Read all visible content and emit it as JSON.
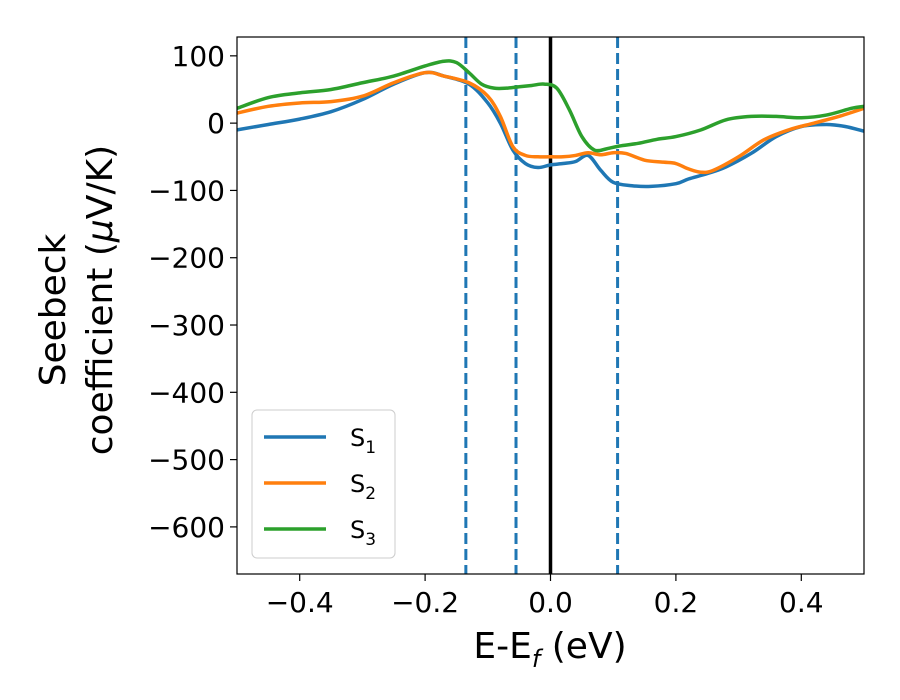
{
  "chart_data": {
    "type": "line",
    "xlabel": {
      "main": "E-E",
      "sub": "f",
      "tail": " (eV)"
    },
    "ylabel": {
      "line1": "Seebeck",
      "line2_pre": "coefficient  (",
      "line2_mu": "μ",
      "line2_post": "V/K)"
    },
    "xlim": [
      -0.5,
      0.5
    ],
    "ylim": [
      -670,
      128
    ],
    "xticks": [
      -0.4,
      -0.2,
      0.0,
      0.2,
      0.4
    ],
    "xtick_labels": [
      "−0.4",
      "−0.2",
      "0.0",
      "0.2",
      "0.4"
    ],
    "yticks": [
      100,
      0,
      -100,
      -200,
      -300,
      -400,
      -500,
      -600
    ],
    "ytick_labels": [
      "100",
      "0",
      "−100",
      "−200",
      "−300",
      "−400",
      "−500",
      "−600"
    ],
    "grid": false,
    "legend_position": "lower-left",
    "vlines": [
      {
        "x": 0.0,
        "style": "solid",
        "color": "#000000"
      },
      {
        "x": -0.135,
        "style": "dashed",
        "color": "#1f77b4"
      },
      {
        "x": -0.055,
        "style": "dashed",
        "color": "#1f77b4"
      },
      {
        "x": 0.107,
        "style": "dashed",
        "color": "#1f77b4"
      }
    ],
    "series": [
      {
        "name": "S",
        "sub": "1",
        "color": "#1f77b4",
        "x": [
          -0.5,
          -0.45,
          -0.4,
          -0.35,
          -0.3,
          -0.25,
          -0.2,
          -0.17,
          -0.13,
          -0.1,
          -0.08,
          -0.06,
          -0.04,
          -0.02,
          0.0,
          0.02,
          0.04,
          0.06,
          0.08,
          0.1,
          0.13,
          0.16,
          0.2,
          0.22,
          0.25,
          0.28,
          0.32,
          0.36,
          0.4,
          0.44,
          0.47,
          0.5
        ],
        "y": [
          -10,
          -2,
          6,
          17,
          35,
          58,
          75,
          70,
          58,
          30,
          0,
          -40,
          -60,
          -66,
          -62,
          -60,
          -57,
          -48,
          -70,
          -88,
          -93,
          -94,
          -90,
          -83,
          -75,
          -65,
          -45,
          -20,
          -5,
          -2,
          -5,
          -12
        ]
      },
      {
        "name": "S",
        "sub": "2",
        "color": "#ff7f0e",
        "x": [
          -0.5,
          -0.45,
          -0.4,
          -0.35,
          -0.3,
          -0.25,
          -0.2,
          -0.17,
          -0.13,
          -0.1,
          -0.08,
          -0.06,
          -0.04,
          -0.02,
          0.0,
          0.02,
          0.04,
          0.06,
          0.08,
          0.1,
          0.12,
          0.15,
          0.18,
          0.2,
          0.22,
          0.24,
          0.26,
          0.3,
          0.34,
          0.38,
          0.42,
          0.46,
          0.5
        ],
        "y": [
          15,
          25,
          30,
          32,
          40,
          60,
          75,
          70,
          60,
          40,
          10,
          -35,
          -48,
          -50,
          -50,
          -50,
          -48,
          -44,
          -47,
          -44,
          -45,
          -55,
          -58,
          -60,
          -68,
          -73,
          -70,
          -50,
          -25,
          -10,
          0,
          10,
          22
        ]
      },
      {
        "name": "S",
        "sub": "3",
        "color": "#2ca02c",
        "x": [
          -0.5,
          -0.45,
          -0.4,
          -0.35,
          -0.3,
          -0.25,
          -0.2,
          -0.17,
          -0.15,
          -0.13,
          -0.11,
          -0.09,
          -0.07,
          -0.05,
          -0.03,
          -0.01,
          0.01,
          0.03,
          0.05,
          0.07,
          0.09,
          0.11,
          0.14,
          0.17,
          0.2,
          0.24,
          0.28,
          0.32,
          0.36,
          0.4,
          0.44,
          0.48,
          0.5
        ],
        "y": [
          22,
          38,
          45,
          50,
          60,
          70,
          85,
          92,
          90,
          75,
          58,
          52,
          52,
          54,
          56,
          58,
          52,
          20,
          -20,
          -40,
          -38,
          -34,
          -30,
          -24,
          -20,
          -10,
          5,
          10,
          10,
          8,
          12,
          22,
          25
        ]
      }
    ]
  }
}
